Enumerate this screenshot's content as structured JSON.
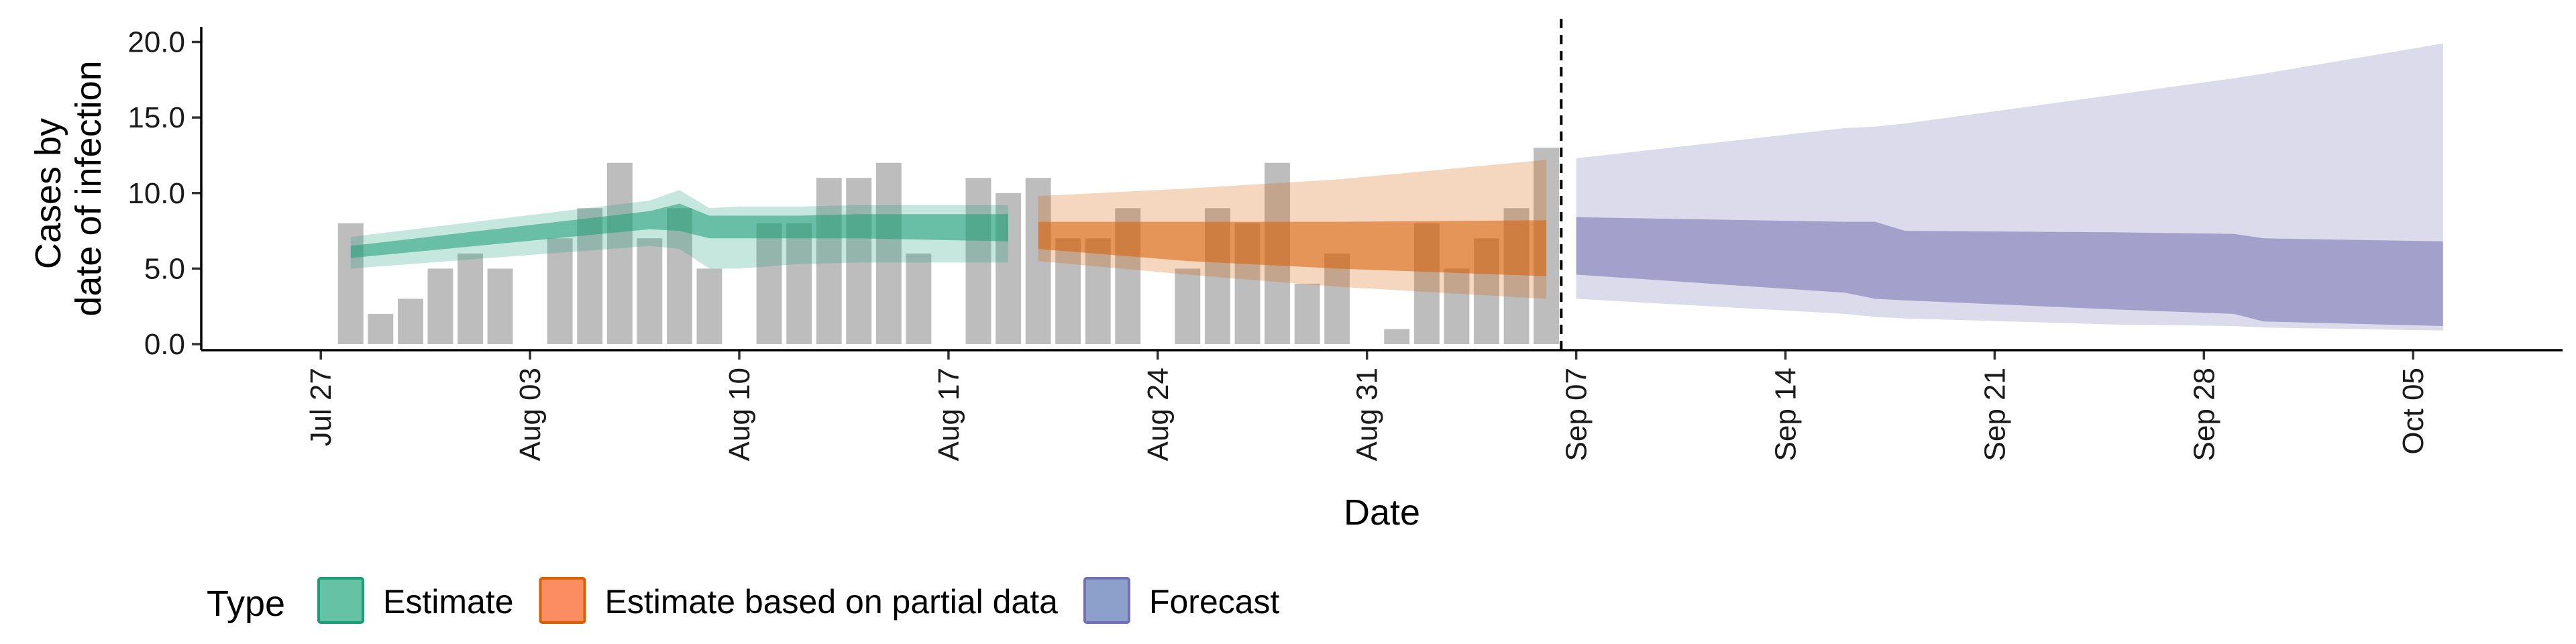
{
  "chart_data": {
    "type": "bar+area",
    "xlabel": "Date",
    "ylabel_lines": [
      "Cases by",
      "date of infection"
    ],
    "ylim": [
      -0.4,
      21.0
    ],
    "yticks": [
      0,
      5,
      10,
      15,
      20
    ],
    "ytick_labels": [
      "0.0",
      "5.0",
      "10.0",
      "15.0",
      "20.0"
    ],
    "x_range": [
      "2020-07-23",
      "2020-10-10"
    ],
    "xticks": [
      "2020-07-27",
      "2020-08-03",
      "2020-08-10",
      "2020-08-17",
      "2020-08-24",
      "2020-08-31",
      "2020-09-07",
      "2020-09-14",
      "2020-09-21",
      "2020-09-28",
      "2020-10-05"
    ],
    "xtick_labels": [
      "Jul 27",
      "Aug 03",
      "Aug 10",
      "Aug 17",
      "Aug 24",
      "Aug 31",
      "Sep 07",
      "Sep 14",
      "Sep 21",
      "Sep 28",
      "Oct 05"
    ],
    "vline_date": "2020-09-06",
    "grid": false,
    "legend_position": "bottom-left",
    "legend": {
      "title": "Type",
      "items": [
        {
          "label": "Estimate",
          "fill": "#66c2a5",
          "stroke": "#1b9e77"
        },
        {
          "label": "Estimate based on partial data",
          "fill": "#fc8d62",
          "stroke": "#d95f02"
        },
        {
          "label": "Forecast",
          "fill": "#8da0cb",
          "stroke": "#7570b3"
        }
      ]
    },
    "bar_color": "#bdbdbd",
    "bars": {
      "start_date": "2020-07-28",
      "values": [
        8,
        2,
        3,
        5,
        6,
        5,
        0,
        7,
        9,
        12,
        7,
        9,
        5,
        0,
        8,
        8,
        11,
        11,
        12,
        6,
        0,
        11,
        10,
        11,
        7,
        7,
        9,
        0,
        5,
        9,
        8,
        12,
        4,
        6,
        0,
        1,
        8,
        5,
        7,
        9,
        13
      ]
    },
    "bands": [
      {
        "type": "Estimate",
        "color": "#1b9e77",
        "dates": [
          "2020-07-28",
          "2020-08-07",
          "2020-08-08",
          "2020-08-09",
          "2020-08-10",
          "2020-08-12",
          "2020-08-14",
          "2020-08-19"
        ],
        "outer_upper": [
          7.1,
          9.5,
          10.2,
          9.0,
          9.1,
          9.1,
          9.2,
          9.2
        ],
        "outer_lower": [
          5.0,
          6.5,
          6.3,
          5.0,
          5.0,
          5.3,
          5.4,
          5.4
        ],
        "inner_upper": [
          6.5,
          8.8,
          9.3,
          8.5,
          8.5,
          8.5,
          8.6,
          8.6
        ],
        "inner_lower": [
          5.7,
          7.6,
          7.5,
          7.0,
          7.0,
          7.0,
          7.0,
          6.8
        ]
      },
      {
        "type": "Estimate based on partial data",
        "color": "#d95f02",
        "dates": [
          "2020-08-20",
          "2020-08-25",
          "2020-08-30",
          "2020-09-06"
        ],
        "outer_upper": [
          9.8,
          10.3,
          10.9,
          12.2
        ],
        "outer_lower": [
          5.5,
          4.6,
          3.8,
          3.0
        ],
        "inner_upper": [
          8.1,
          8.1,
          8.1,
          8.2
        ],
        "inner_lower": [
          6.3,
          5.5,
          5.0,
          4.5
        ]
      },
      {
        "type": "Forecast",
        "color": "#7570b3",
        "dates": [
          "2020-09-07",
          "2020-09-16",
          "2020-09-17",
          "2020-09-18",
          "2020-09-25",
          "2020-09-29",
          "2020-09-30",
          "2020-10-06"
        ],
        "outer_upper": [
          12.3,
          14.3,
          14.4,
          14.6,
          16.5,
          17.6,
          17.9,
          19.9
        ],
        "outer_lower": [
          3.0,
          2.0,
          1.8,
          1.7,
          1.3,
          1.2,
          1.1,
          0.9
        ],
        "inner_upper": [
          8.4,
          8.1,
          8.1,
          7.5,
          7.4,
          7.3,
          7.0,
          6.8
        ],
        "inner_lower": [
          4.6,
          3.4,
          3.0,
          2.9,
          2.3,
          2.0,
          1.5,
          1.2
        ]
      }
    ]
  }
}
